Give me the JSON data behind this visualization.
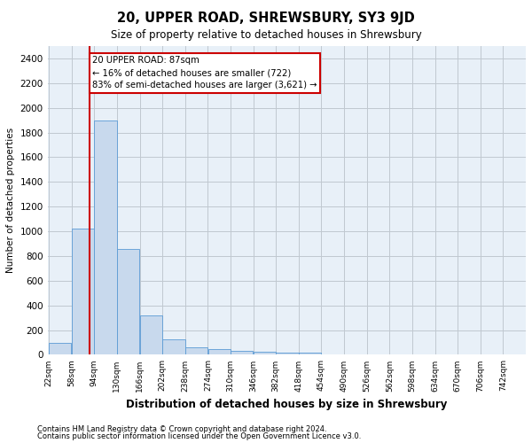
{
  "title": "20, UPPER ROAD, SHREWSBURY, SY3 9JD",
  "subtitle": "Size of property relative to detached houses in Shrewsbury",
  "xlabel": "Distribution of detached houses by size in Shrewsbury",
  "ylabel": "Number of detached properties",
  "footnote1": "Contains HM Land Registry data © Crown copyright and database right 2024.",
  "footnote2": "Contains public sector information licensed under the Open Government Licence v3.0.",
  "bar_color": "#c8d9ed",
  "bar_edge_color": "#5b9bd5",
  "grid_color": "#c0c8d0",
  "bg_color": "#e8f0f8",
  "annotation_text": "20 UPPER ROAD: 87sqm\n← 16% of detached houses are smaller (722)\n83% of semi-detached houses are larger (3,621) →",
  "annotation_box_color": "#ffffff",
  "annotation_box_edge": "#cc0000",
  "red_line_x": 87,
  "red_line_color": "#cc0000",
  "bin_edges": [
    22,
    58,
    94,
    130,
    166,
    202,
    238,
    274,
    310,
    346,
    382,
    418,
    454,
    490,
    526,
    562,
    598,
    634,
    670,
    706,
    742
  ],
  "bin_labels": [
    "22sqm",
    "58sqm",
    "94sqm",
    "130sqm",
    "166sqm",
    "202sqm",
    "238sqm",
    "274sqm",
    "310sqm",
    "346sqm",
    "382sqm",
    "418sqm",
    "454sqm",
    "490sqm",
    "526sqm",
    "562sqm",
    "598sqm",
    "634sqm",
    "670sqm",
    "706sqm",
    "742sqm"
  ],
  "bar_heights": [
    100,
    1020,
    1900,
    860,
    320,
    125,
    60,
    50,
    35,
    25,
    20,
    20,
    0,
    0,
    0,
    0,
    0,
    0,
    0,
    0
  ],
  "ylim": [
    0,
    2500
  ],
  "yticks": [
    0,
    200,
    400,
    600,
    800,
    1000,
    1200,
    1400,
    1600,
    1800,
    2000,
    2200,
    2400
  ],
  "figsize": [
    6.0,
    5.0
  ],
  "dpi": 100
}
